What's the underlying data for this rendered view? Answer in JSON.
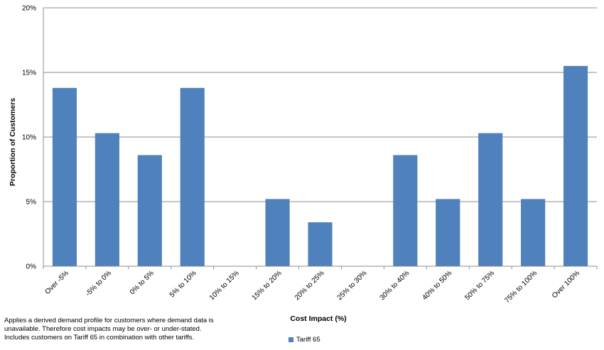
{
  "chart_data": {
    "type": "bar",
    "categories": [
      "Over -5%",
      "-5% to 0%",
      "0% to 5%",
      "5% to 10%",
      "10% to 15%",
      "15% to 20%",
      "20% to 25%",
      "25% to 30%",
      "30% to 40%",
      "40% to 50%",
      "50% to 75%",
      "75% to 100%",
      "Over 100%"
    ],
    "series": [
      {
        "name": "Tariff 65",
        "color": "#4f81bd",
        "values": [
          13.8,
          10.3,
          8.6,
          13.8,
          0,
          5.2,
          3.4,
          0,
          8.6,
          5.2,
          10.3,
          5.2,
          15.5
        ]
      }
    ],
    "xlabel": "Cost Impact (%)",
    "ylabel": "Proportion of Customers",
    "ylim": [
      0,
      20
    ],
    "yticks": [
      0,
      5,
      10,
      15,
      20
    ],
    "ytick_labels": [
      "0%",
      "5%",
      "10%",
      "15%",
      "20%"
    ],
    "grid": true,
    "legend_position": "bottom-center"
  },
  "footnote": {
    "lines": [
      "Applies a derived demand profile for customers where demand data is",
      "unavailable.  Therefore cost impacts may be over- or under-stated.",
      "Includes customers on Tariff 65 in combination with other tariffs."
    ]
  },
  "legend": {
    "label": "Tariff 65",
    "color": "#4f81bd"
  }
}
